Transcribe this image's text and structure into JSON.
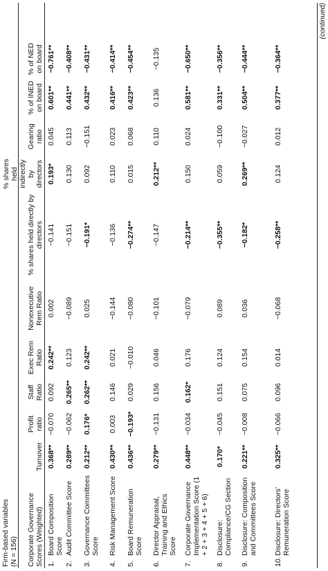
{
  "caption": {
    "line1": "Firm-based variables",
    "line2": "(N = 156)"
  },
  "headers": [
    "Corporate Governance Scores (Weighted)",
    "Turnover",
    "Profit ratio",
    "Staff Ratio",
    "Exec Rem Ratio",
    "Nonexecutive Rem Ratio",
    "% shares held directly by directors",
    "% shares held indirectly by directors",
    "Gearing ratio",
    "% of INED on board",
    "% of NED on board"
  ],
  "rows": [
    {
      "num": "1.",
      "label": "Board Composition Score",
      "cells": [
        "0.368**",
        "−0.070",
        "0.092",
        "0.242**",
        "0.002",
        "−0.141",
        "0.193*",
        "0.045",
        "0.601**",
        "−0.761**"
      ],
      "bold": [
        true,
        false,
        false,
        true,
        false,
        false,
        true,
        false,
        true,
        true
      ]
    },
    {
      "num": "2.",
      "label": "Audit Committee Score",
      "cells": [
        "0.289**",
        "−0.062",
        "0.265**",
        "0.123",
        "−0.089",
        "−0.151",
        "0.130",
        "0.113",
        "0.441**",
        "−0.408**"
      ],
      "bold": [
        true,
        false,
        true,
        false,
        false,
        false,
        false,
        false,
        true,
        true
      ]
    },
    {
      "num": "3.",
      "label": "Governance Committees Score",
      "cells": [
        "0.212**",
        "0.176*",
        "0.262**",
        "0.242**",
        "0.025",
        "−0.191*",
        "0.092",
        "−0.151",
        "0.432**",
        "−0.431**"
      ],
      "bold": [
        true,
        true,
        true,
        true,
        false,
        true,
        false,
        false,
        true,
        true
      ]
    },
    {
      "num": "4.",
      "label": "Risk Management Score",
      "cells": [
        "0.430**",
        "0.003",
        "0.146",
        "0.021",
        "−0.144",
        "−0.136",
        "0.110",
        "0.023",
        "0.416**",
        "−0.414**"
      ],
      "bold": [
        true,
        false,
        false,
        false,
        false,
        false,
        false,
        false,
        true,
        true
      ]
    },
    {
      "num": "5.",
      "label": "Board Remuneration Score",
      "cells": [
        "0.436**",
        "−0.193*",
        "0.029",
        "−0.010",
        "−0.080",
        "−0.274**",
        "0.015",
        "0.068",
        "0.423**",
        "−0.454**"
      ],
      "bold": [
        true,
        true,
        false,
        false,
        false,
        true,
        false,
        false,
        true,
        true
      ]
    },
    {
      "num": "6.",
      "label": "Director Appraisal, Training and Ethics Score",
      "cells": [
        "0.279**",
        "−0.131",
        "0.156",
        "0.046",
        "−0.101",
        "−0.147",
        "0.212**",
        "0.110",
        "0.136",
        "−0.135"
      ],
      "bold": [
        true,
        false,
        false,
        false,
        false,
        false,
        true,
        false,
        false,
        false
      ]
    },
    {
      "num": "7.",
      "label": "Corporate Governance Implementation Score (1 + 2 + 3 + 4 + 5 + 6)",
      "cells": [
        "0.448**",
        "−0.034",
        "0.162*",
        "0.176",
        "−0.079",
        "−0.214**",
        "0.150",
        "0.024",
        "0.581**",
        "−0.650**"
      ],
      "bold": [
        true,
        false,
        true,
        false,
        false,
        true,
        false,
        false,
        true,
        true
      ]
    },
    {
      "num": "8.",
      "label": "Disclosure: Compliance/CG Section",
      "cells": [
        "0.170*",
        "−0.045",
        "0.151",
        "0.124",
        "0.089",
        "−0.355**",
        "0.059",
        "−0.100",
        "0.331**",
        "−0.356**"
      ],
      "bold": [
        true,
        false,
        false,
        false,
        false,
        true,
        false,
        false,
        true,
        true
      ]
    },
    {
      "num": "9.",
      "label": "Disclosure: Composition and Committees Score",
      "cells": [
        "0.221**",
        "−0.008",
        "0.075",
        "0.154",
        "0.036",
        "−0.182*",
        "0.269**",
        "−0.027",
        "0.504**",
        "−0.444**"
      ],
      "bold": [
        true,
        false,
        false,
        false,
        false,
        true,
        true,
        false,
        true,
        true
      ]
    },
    {
      "num": "10.",
      "label": "Disclosure: Directors’ Remuneration Score",
      "cells": [
        "0.325**",
        "−0.066",
        "0.096",
        "0.014",
        "−0.068",
        "−0.258**",
        "0.124",
        "0.012",
        "0.377**",
        "−0.364**"
      ],
      "bold": [
        true,
        false,
        false,
        false,
        false,
        true,
        false,
        false,
        true,
        true
      ]
    }
  ],
  "footer": {
    "continued": "(continued)"
  }
}
